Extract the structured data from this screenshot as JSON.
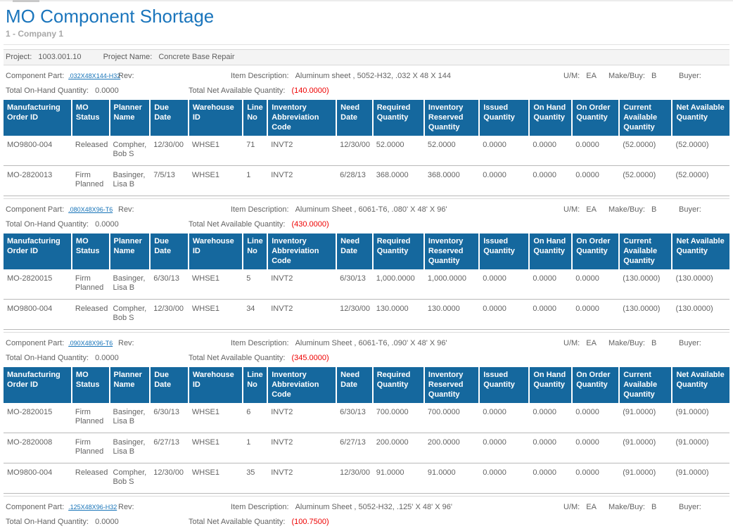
{
  "colors": {
    "title": "#1a75bc",
    "table_header_bg": "#15689e",
    "link": "#1673b8",
    "negative": "#ee0000",
    "text": "#636363"
  },
  "report": {
    "title": "MO Component Shortage",
    "company": "1 - Company 1"
  },
  "project": {
    "label": "Project:",
    "value": "1003.001.10",
    "name_label": "Project Name:",
    "name_value": "Concrete Base Repair"
  },
  "labels": {
    "component_part": "Component Part:",
    "rev": "Rev:",
    "item_description": "Item Description:",
    "um": "U/M:",
    "make_buy": "Make/Buy:",
    "buyer": "Buyer:",
    "total_on_hand": "Total On-Hand Quantity:",
    "total_net_available": "Total Net Available Quantity:"
  },
  "table_headers": [
    "Manufacturing Order ID",
    "MO Status",
    "Planner Name",
    "Due Date",
    "Warehouse ID",
    "Line No",
    "Inventory Abbreviation Code",
    "Need Date",
    "Required Quantity",
    "Inventory Reserved Quantity",
    "Issued Quantity",
    "On Hand Quantity",
    "On Order Quantity",
    "Current Available Quantity",
    "Net Available Quantity"
  ],
  "sections": [
    {
      "part": ".032X48X144-H32",
      "rev": "",
      "item_description": "Aluminum sheet , 5052-H32, .032 X 48 X 144",
      "um": "EA",
      "make_buy": "B",
      "buyer": "",
      "total_on_hand": "0.0000",
      "total_net_available": "(140.0000)",
      "rows": [
        [
          "MO9800-004",
          "Released",
          "Compher, Bob S",
          "12/30/00",
          "WHSE1",
          "71",
          "INVT2",
          "12/30/00",
          "52.0000",
          "52.0000",
          "0.0000",
          "0.0000",
          "0.0000",
          "(52.0000)",
          "(52.0000)"
        ],
        [
          "MO-2820013",
          "Firm Planned",
          "Basinger, Lisa B",
          "7/5/13",
          "WHSE1",
          "1",
          "INVT2",
          "6/28/13",
          "368.0000",
          "368.0000",
          "0.0000",
          "0.0000",
          "0.0000",
          "(52.0000)",
          "(52.0000)"
        ]
      ]
    },
    {
      "part": ".080X48X96-T6",
      "rev": "",
      "item_description": "Aluminum Sheet , 6061-T6, .080' X 48' X 96'",
      "um": "EA",
      "make_buy": "B",
      "buyer": "",
      "total_on_hand": "0.0000",
      "total_net_available": "(430.0000)",
      "rows": [
        [
          "MO-2820015",
          "Firm Planned",
          "Basinger, Lisa B",
          "6/30/13",
          "WHSE1",
          "5",
          "INVT2",
          "6/30/13",
          "1,000.0000",
          "1,000.0000",
          "0.0000",
          "0.0000",
          "0.0000",
          "(130.0000)",
          "(130.0000)"
        ],
        [
          "MO9800-004",
          "Released",
          "Compher, Bob S",
          "12/30/00",
          "WHSE1",
          "34",
          "INVT2",
          "12/30/00",
          "130.0000",
          "130.0000",
          "0.0000",
          "0.0000",
          "0.0000",
          "(130.0000)",
          "(130.0000)"
        ]
      ]
    },
    {
      "part": ".090X48X96-T6",
      "rev": "",
      "item_description": "Aluminum Sheet , 6061-T6, .090' X 48' X 96'",
      "um": "EA",
      "make_buy": "B",
      "buyer": "",
      "total_on_hand": "0.0000",
      "total_net_available": "(345.0000)",
      "rows": [
        [
          "MO-2820015",
          "Firm Planned",
          "Basinger, Lisa B",
          "6/30/13",
          "WHSE1",
          "6",
          "INVT2",
          "6/30/13",
          "700.0000",
          "700.0000",
          "0.0000",
          "0.0000",
          "0.0000",
          "(91.0000)",
          "(91.0000)"
        ],
        [
          "MO-2820008",
          "Firm Planned",
          "Basinger, Lisa B",
          "6/27/13",
          "WHSE1",
          "1",
          "INVT2",
          "6/27/13",
          "200.0000",
          "200.0000",
          "0.0000",
          "0.0000",
          "0.0000",
          "(91.0000)",
          "(91.0000)"
        ],
        [
          "MO9800-004",
          "Released",
          "Compher, Bob S",
          "12/30/00",
          "WHSE1",
          "35",
          "INVT2",
          "12/30/00",
          "91.0000",
          "91.0000",
          "0.0000",
          "0.0000",
          "0.0000",
          "(91.0000)",
          "(91.0000)"
        ]
      ]
    },
    {
      "part": ".125X48X96-H32",
      "rev": "",
      "item_description": "Aluminum Sheet , 5052-H32, .125' X 48' X 96'",
      "um": "EA",
      "make_buy": "B",
      "buyer": "",
      "total_on_hand": "0.0000",
      "total_net_available": "(100.7500)",
      "rows": []
    }
  ]
}
